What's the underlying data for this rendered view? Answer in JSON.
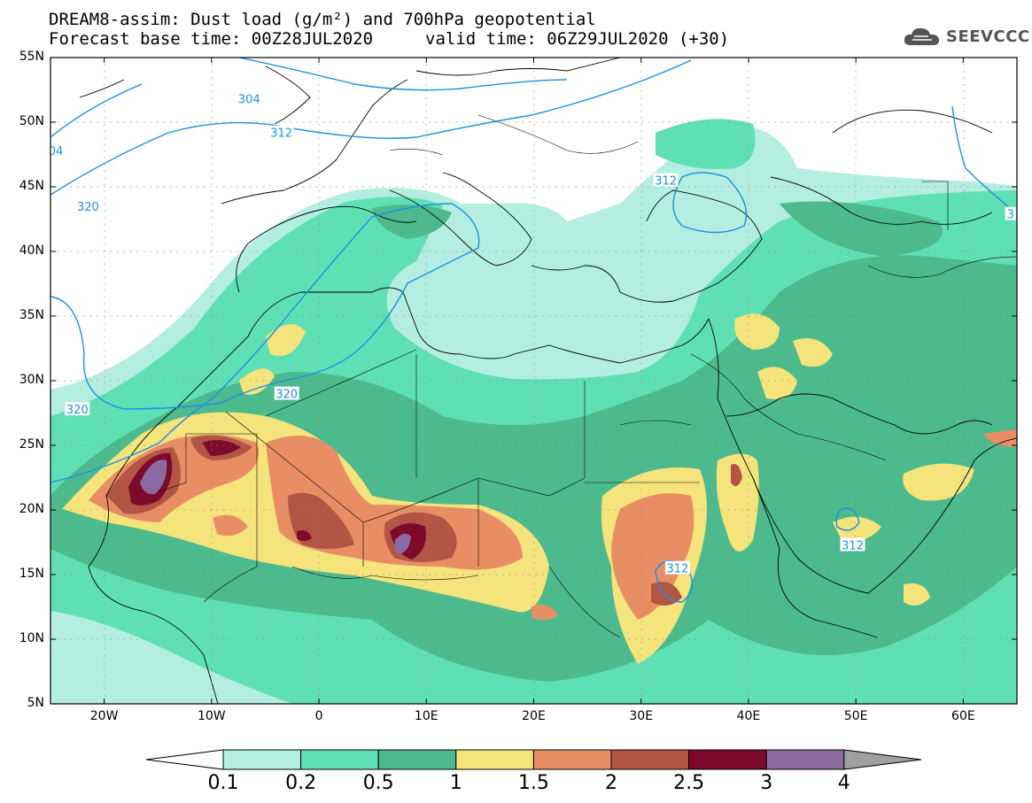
{
  "title": {
    "line1": "DREAM8-assim: Dust load (g/m²) and 700hPa geopotential",
    "line2": "Forecast base time: 00Z28JUL2020",
    "valid": "valid time: 06Z29JUL2020 (+30)"
  },
  "logo": {
    "text": "SEEVCCC",
    "icon": "cloud-icon"
  },
  "lat_labels": [
    "55N",
    "50N",
    "45N",
    "40N",
    "35N",
    "30N",
    "25N",
    "20N",
    "15N",
    "10N",
    "5N"
  ],
  "lat_values": [
    55,
    50,
    45,
    40,
    35,
    30,
    25,
    20,
    15,
    10,
    5
  ],
  "lon_labels": [
    "20W",
    "10W",
    "0",
    "10E",
    "20E",
    "30E",
    "40E",
    "50E",
    "60E"
  ],
  "lon_values": [
    -20,
    -10,
    0,
    10,
    20,
    30,
    40,
    50,
    60
  ],
  "extent": {
    "lon_min": -25,
    "lon_max": 65,
    "lat_min": 5,
    "lat_max": 55
  },
  "contour_labels": [
    {
      "text": "304",
      "lon": -6.5,
      "lat": 51.8
    },
    {
      "text": "312",
      "lon": -3.5,
      "lat": 49.2
    },
    {
      "text": "04",
      "lon": -24.5,
      "lat": 47.8
    },
    {
      "text": "312",
      "lon": 32.3,
      "lat": 45.5
    },
    {
      "text": "320",
      "lon": -22.5,
      "lat": 27.8
    },
    {
      "text": "320",
      "lon": -21.5,
      "lat": 43.5
    },
    {
      "text": "320",
      "lon": -3.0,
      "lat": 29.0
    },
    {
      "text": "312",
      "lon": 33.4,
      "lat": 15.5
    },
    {
      "text": "312",
      "lon": 49.7,
      "lat": 17.3
    },
    {
      "text": "3",
      "lon": 64.4,
      "lat": 42.9
    }
  ],
  "colorbar": {
    "labels": [
      "0.1",
      "0.2",
      "0.5",
      "1",
      "1.5",
      "2",
      "2.5",
      "3",
      "4"
    ],
    "colors": [
      "#b4eee0",
      "#5fe0b4",
      "#4cba8d",
      "#f5e37c",
      "#e98e64",
      "#b15645",
      "#7d0a2a",
      "#8b6aa2"
    ],
    "under_color": "#ffffff",
    "over_color": "#a0a0a0"
  },
  "colors": {
    "c01": "#b4eee0",
    "c02": "#5fe0b4",
    "c05": "#4cba8d",
    "c1": "#f5e37c",
    "c15": "#e98e64",
    "c2": "#b15645",
    "c25": "#7d0a2a",
    "c3": "#8b6aa2",
    "contour": "#1c90e6"
  }
}
